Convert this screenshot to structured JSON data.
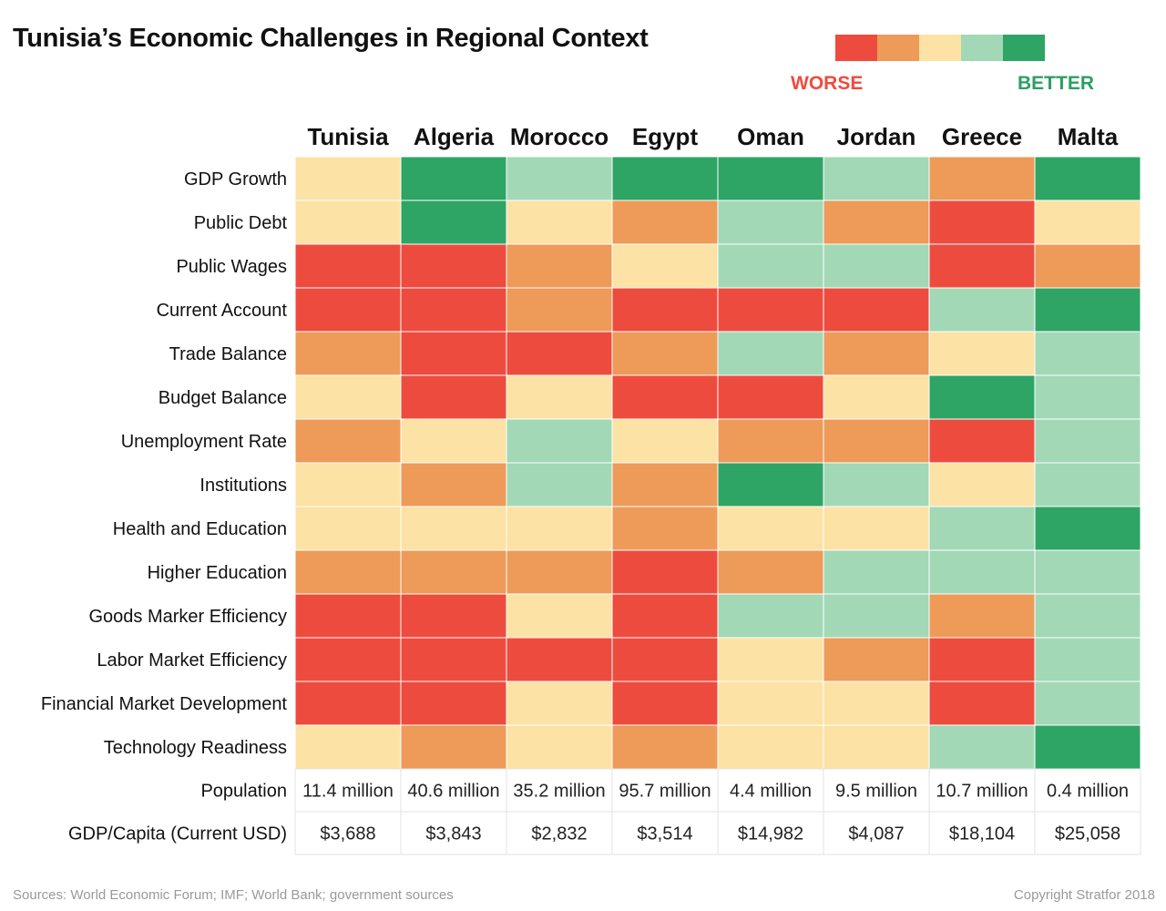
{
  "title": "Tunisia’s Economic Challenges in Regional Context",
  "legend": {
    "worse_label": "WORSE",
    "better_label": "BETTER",
    "colors": [
      "#ee4b3f",
      "#ee9a59",
      "#fde2a6",
      "#a2d8b6",
      "#2ea465"
    ]
  },
  "chart_data": {
    "type": "heatmap",
    "title": "Tunisia’s Economic Challenges in Regional Context",
    "scale": {
      "levels": 5,
      "low_label": "WORSE",
      "high_label": "BETTER",
      "note": "1 = worse, 5 = better"
    },
    "columns": [
      "Tunisia",
      "Algeria",
      "Morocco",
      "Egypt",
      "Oman",
      "Jordan",
      "Greece",
      "Malta"
    ],
    "rows": [
      "GDP Growth",
      "Public Debt",
      "Public Wages",
      "Current Account",
      "Trade Balance",
      "Budget Balance",
      "Unemployment Rate",
      "Institutions",
      "Health and Education",
      "Higher Education",
      "Goods Marker Efficiency",
      "Labor Market Efficiency",
      "Financial Market Development",
      "Technology Readiness"
    ],
    "values": [
      [
        3,
        5,
        4,
        5,
        5,
        4,
        2,
        5
      ],
      [
        3,
        5,
        3,
        2,
        4,
        2,
        1,
        3
      ],
      [
        1,
        1,
        2,
        3,
        4,
        4,
        1,
        2
      ],
      [
        1,
        1,
        2,
        1,
        1,
        1,
        4,
        5
      ],
      [
        2,
        1,
        1,
        2,
        4,
        2,
        3,
        4
      ],
      [
        3,
        1,
        3,
        1,
        1,
        3,
        5,
        4
      ],
      [
        2,
        3,
        4,
        3,
        2,
        2,
        1,
        4
      ],
      [
        3,
        2,
        4,
        2,
        5,
        4,
        3,
        4
      ],
      [
        3,
        3,
        3,
        2,
        3,
        3,
        4,
        5
      ],
      [
        2,
        2,
        2,
        1,
        2,
        4,
        4,
        4
      ],
      [
        1,
        1,
        3,
        1,
        4,
        4,
        2,
        4
      ],
      [
        1,
        1,
        1,
        1,
        3,
        2,
        1,
        4
      ],
      [
        1,
        1,
        3,
        1,
        3,
        3,
        1,
        4
      ],
      [
        3,
        2,
        3,
        2,
        3,
        3,
        4,
        5
      ]
    ],
    "extra_rows": [
      {
        "label": "Population",
        "values": [
          "11.4 million",
          "40.6 million",
          "35.2 million",
          "95.7 million",
          "4.4 million",
          "9.5 million",
          "10.7 million",
          "0.4 million"
        ]
      },
      {
        "label": "GDP/Capita (Current USD)",
        "values": [
          "$3,688",
          "$3,843",
          "$2,832",
          "$3,514",
          "$14,982",
          "$4,087",
          "$18,104",
          "$25,058"
        ]
      }
    ]
  },
  "footer": {
    "sources": "Sources: World Economic Forum; IMF; World Bank; government sources",
    "copyright": "Copyright Stratfor 2018"
  }
}
